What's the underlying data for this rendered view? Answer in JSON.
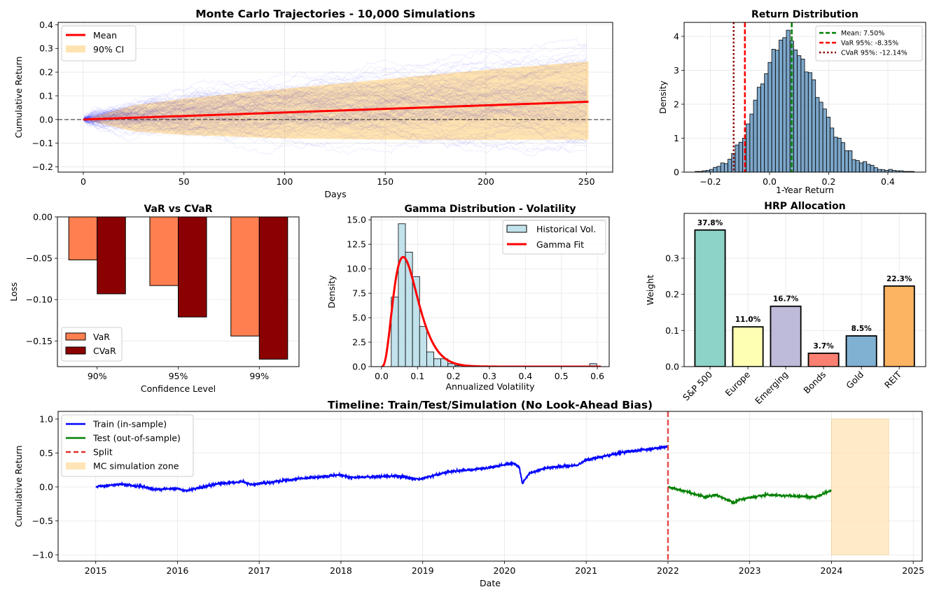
{
  "chart_data": [
    {
      "id": "mc",
      "type": "line",
      "title": "Monte Carlo Trajectories - 10,000 Simulations",
      "xlabel": "Days",
      "ylabel": "Cumulative Return",
      "xlim": [
        -12.5,
        263
      ],
      "ylim": [
        -0.222,
        0.41
      ],
      "xticks": [
        0,
        50,
        100,
        150,
        200,
        250
      ],
      "xtick_labels": [
        "0",
        "50",
        "100",
        "150",
        "200",
        "250"
      ],
      "yticks": [
        -0.2,
        -0.1,
        0.0,
        0.1,
        0.2,
        0.3,
        0.4
      ],
      "ytick_labels": [
        "−0.2",
        "−0.1",
        "0.0",
        "0.1",
        "0.2",
        "0.3",
        "0.4"
      ],
      "grid": true,
      "legend_position": "top-left",
      "mean": {
        "name": "Mean",
        "x": [
          0,
          251
        ],
        "y": [
          0.0,
          0.075
        ],
        "color": "#ff0000"
      },
      "ci": {
        "name": "90% CI",
        "x": [
          0,
          25,
          50,
          100,
          150,
          200,
          251
        ],
        "upper": [
          0,
          0.06,
          0.088,
          0.13,
          0.17,
          0.21,
          0.245
        ],
        "lower": [
          0,
          -0.05,
          -0.065,
          -0.08,
          -0.085,
          -0.086,
          -0.085
        ],
        "color": "#ffa500"
      },
      "trajectories": {
        "color": "#0000ff",
        "days": 251
      },
      "reference_line_y": 0
    },
    {
      "id": "rd",
      "type": "bar",
      "title": "Return Distribution",
      "xlabel": "1-Year Return",
      "ylabel": "Density",
      "xlim": [
        -0.289,
        0.528
      ],
      "ylim": [
        0,
        4.41
      ],
      "xticks": [
        -0.2,
        0.0,
        0.2,
        0.4
      ],
      "xtick_labels": [
        "−0.2",
        "0.0",
        "0.2",
        "0.4"
      ],
      "yticks": [
        0,
        1,
        2,
        3,
        4
      ],
      "ytick_labels": [
        "0",
        "1",
        "2",
        "3",
        "4"
      ],
      "grid": true,
      "legend_position": "top-right",
      "bin_start": -0.252,
      "bin_width": 0.01235,
      "densities": [
        0.02,
        0.02,
        0.04,
        0.05,
        0.08,
        0.14,
        0.17,
        0.27,
        0.25,
        0.38,
        0.55,
        0.8,
        0.88,
        1.0,
        1.42,
        1.71,
        2.12,
        2.5,
        2.6,
        2.9,
        3.23,
        3.62,
        3.59,
        3.89,
        3.96,
        4.18,
        3.86,
        3.6,
        3.43,
        3.33,
        2.95,
        2.93,
        2.72,
        2.2,
        2.06,
        1.86,
        1.62,
        1.3,
        1.03,
        1.0,
        0.87,
        0.63,
        0.63,
        0.37,
        0.34,
        0.27,
        0.31,
        0.23,
        0.2,
        0.13,
        0.08,
        0.07,
        0.05,
        0.08,
        0.05,
        0.04,
        0.04,
        0.02,
        0.02,
        0.02
      ],
      "bar_color": "#4682b4",
      "vlines": [
        {
          "label": "Mean: 7.50%",
          "x": 0.075,
          "color": "#008000",
          "style": "dashed"
        },
        {
          "label": "VaR 95%: -8.35%",
          "x": -0.0835,
          "color": "#ff0000",
          "style": "dashed"
        },
        {
          "label": "CVaR 95%: -12.14%",
          "x": -0.1214,
          "color": "#8b0000",
          "style": "dotted"
        }
      ]
    },
    {
      "id": "vc",
      "type": "bar",
      "title": "VaR vs CVaR",
      "xlabel": "Confidence Level",
      "ylabel": "Loss",
      "categories": [
        "90%",
        "95%",
        "99%"
      ],
      "ylim": [
        -0.181,
        0
      ],
      "yticks": [
        0.0,
        -0.05,
        -0.1,
        -0.15
      ],
      "ytick_labels": [
        "0.00",
        "−0.05",
        "−0.10",
        "−0.15"
      ],
      "legend_position": "bottom-left",
      "series": [
        {
          "name": "VaR",
          "values": [
            -0.052,
            -0.083,
            -0.144
          ],
          "color": "#ff7f50"
        },
        {
          "name": "CVaR",
          "values": [
            -0.093,
            -0.121,
            -0.172
          ],
          "color": "#8b0000"
        }
      ]
    },
    {
      "id": "gd",
      "type": "bar",
      "title": "Gamma Distribution - Volatility",
      "xlabel": "Annualized Volatility",
      "ylabel": "Density",
      "xlim": [
        -0.029,
        0.633
      ],
      "ylim": [
        0,
        15.3
      ],
      "xticks": [
        0.0,
        0.1,
        0.2,
        0.3,
        0.4,
        0.5,
        0.6
      ],
      "xtick_labels": [
        "0.0",
        "0.1",
        "0.2",
        "0.3",
        "0.4",
        "0.5",
        "0.6"
      ],
      "yticks": [
        0,
        2.5,
        5,
        7.5,
        10,
        12.5,
        15
      ],
      "ytick_labels": [
        "0.0",
        "2.5",
        "5.0",
        "7.5",
        "10.0",
        "12.5",
        "15.0"
      ],
      "grid": true,
      "legend_position": "top-right",
      "hist": {
        "name": "Historical Vol.",
        "bin_start": 0.027,
        "bin_width": 0.0197,
        "densities": [
          7.1,
          14.6,
          11.7,
          9.2,
          4.1,
          1.5,
          0.8,
          0.8,
          0.3,
          0.1,
          0.05,
          0,
          0,
          0,
          0,
          0,
          0,
          0,
          0,
          0,
          0,
          0,
          0,
          0,
          0,
          0,
          0,
          0,
          0.3
        ],
        "color": "#add8e6"
      },
      "fit": {
        "name": "Gamma Fit",
        "shape": 4,
        "scale": 0.02,
        "color": "#ff0000"
      }
    },
    {
      "id": "hrp",
      "type": "bar",
      "title": "HRP Allocation",
      "ylabel": "Weight",
      "categories": [
        "S&P 500",
        "Europe",
        "Emerging",
        "Bonds",
        "Gold",
        "REIT"
      ],
      "values": [
        0.378,
        0.11,
        0.167,
        0.037,
        0.085,
        0.223
      ],
      "value_labels": [
        "37.8%",
        "11.0%",
        "16.7%",
        "3.7%",
        "8.5%",
        "22.3%"
      ],
      "colors": [
        "#8dd3c7",
        "#ffffb3",
        "#bebada",
        "#fb8072",
        "#80b1d3",
        "#fdb462"
      ],
      "ylim": [
        0,
        0.424
      ],
      "yticks": [
        0.0,
        0.1,
        0.2,
        0.3
      ],
      "ytick_labels": [
        "0.0",
        "0.1",
        "0.2",
        "0.3"
      ],
      "grid": true
    },
    {
      "id": "tl",
      "type": "line",
      "title": "Timeline: Train/Test/Simulation (No Look-Ahead Bias)",
      "xlabel": "Date",
      "ylabel": "Cumulative Return",
      "xlim": [
        2014.54,
        2025.11
      ],
      "ylim": [
        -1.093,
        1.113
      ],
      "xticks": [
        2015,
        2016,
        2017,
        2018,
        2019,
        2020,
        2021,
        2022,
        2023,
        2024,
        2025
      ],
      "xtick_labels": [
        "2015",
        "2016",
        "2017",
        "2018",
        "2019",
        "2020",
        "2021",
        "2022",
        "2023",
        "2024",
        "2025"
      ],
      "yticks": [
        -1.0,
        -0.5,
        0.0,
        0.5,
        1.0
      ],
      "ytick_labels": [
        "−1.0",
        "−0.5",
        "0.0",
        "0.5",
        "1.0"
      ],
      "grid": true,
      "legend_position": "top-left",
      "series": [
        {
          "name": "Train (in-sample)",
          "color": "#0000ff",
          "x": [
            2015.0,
            2015.3,
            2015.6,
            2015.7,
            2016.0,
            2016.1,
            2016.5,
            2016.8,
            2016.9,
            2017.0,
            2017.5,
            2018.0,
            2018.1,
            2018.7,
            2018.95,
            2019.3,
            2019.8,
            2020.1,
            2020.18,
            2020.22,
            2020.3,
            2020.5,
            2020.9,
            2021.0,
            2021.5,
            2021.8,
            2022.0
          ],
          "y": [
            0.0,
            0.04,
            0.0,
            -0.04,
            -0.02,
            -0.06,
            0.05,
            0.08,
            0.03,
            0.05,
            0.12,
            0.18,
            0.14,
            0.16,
            0.11,
            0.22,
            0.28,
            0.35,
            0.3,
            0.05,
            0.2,
            0.28,
            0.32,
            0.4,
            0.52,
            0.56,
            0.6
          ]
        },
        {
          "name": "Test (out-of-sample)",
          "color": "#008000",
          "x": [
            2022.0,
            2022.2,
            2022.45,
            2022.6,
            2022.8,
            2022.9,
            2023.2,
            2023.5,
            2023.8,
            2024.0
          ],
          "y": [
            0.0,
            -0.06,
            -0.15,
            -0.12,
            -0.23,
            -0.18,
            -0.12,
            -0.13,
            -0.15,
            -0.05
          ]
        }
      ],
      "split": {
        "name": "Split",
        "x": 2022.0,
        "color": "#e03030"
      },
      "mc_zone": {
        "name": "MC simulation zone",
        "x": [
          2024.0,
          2024.7
        ],
        "y": [
          -1.0,
          1.0
        ],
        "color": "#ffe4b5"
      }
    }
  ]
}
